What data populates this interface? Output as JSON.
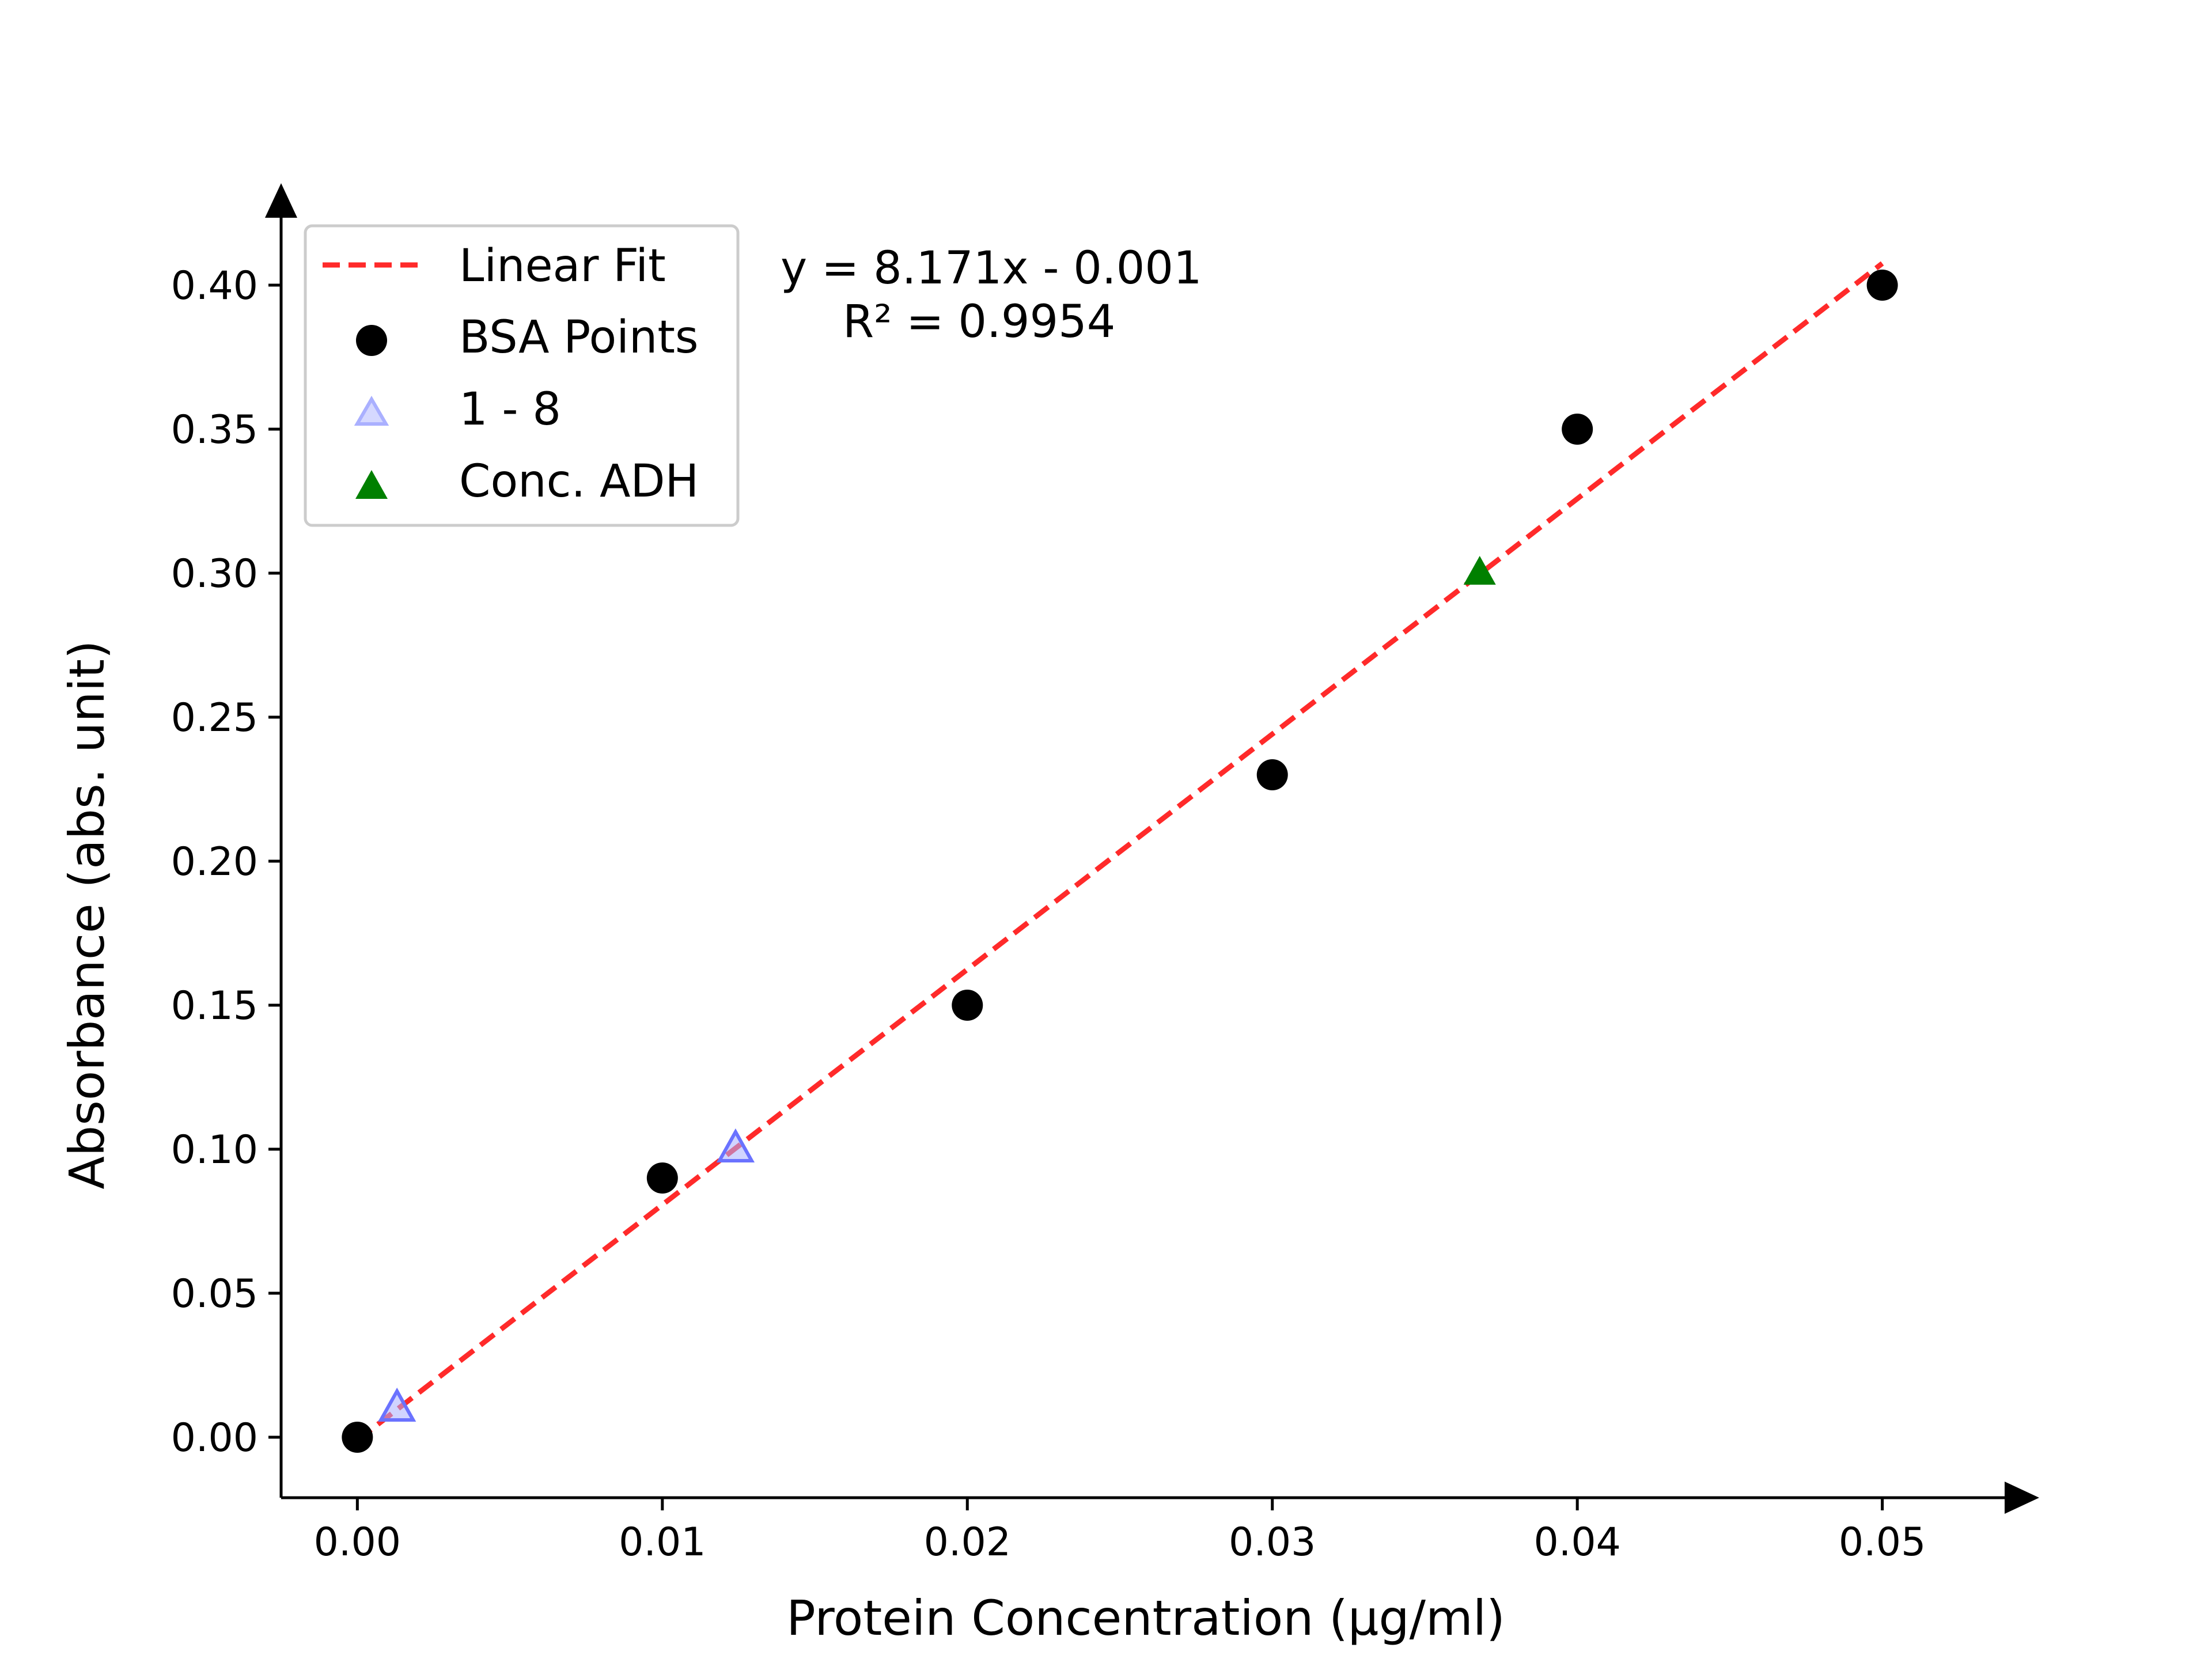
{
  "chart_data": {
    "type": "scatter",
    "xlabel": "Protein Concentration (µg/ml)",
    "ylabel": "Absorbance (abs. unit)",
    "xlim": [
      -0.0025,
      0.0525
    ],
    "ylim": [
      -0.021,
      0.421
    ],
    "x_ticks": [
      "0.00",
      "0.01",
      "0.02",
      "0.03",
      "0.04",
      "0.05"
    ],
    "y_ticks": [
      "0.00",
      "0.05",
      "0.10",
      "0.15",
      "0.20",
      "0.25",
      "0.30",
      "0.35",
      "0.40"
    ],
    "x_tick_values": [
      0.0,
      0.01,
      0.02,
      0.03,
      0.04,
      0.05
    ],
    "y_tick_values": [
      0.0,
      0.05,
      0.1,
      0.15,
      0.2,
      0.25,
      0.3,
      0.35,
      0.4
    ],
    "legend_position": "top-left",
    "grid": false,
    "fit_equation": "y = 8.171x - 0.001",
    "fit_r2": "R² = 0.9954",
    "series": [
      {
        "name": "Linear Fit",
        "kind": "line",
        "style": "dashed",
        "color": "#ff2a2a",
        "x": [
          0.0,
          0.05
        ],
        "y": [
          -0.001,
          0.40755
        ]
      },
      {
        "name": "BSA Points",
        "kind": "scatter",
        "marker": "circle",
        "color": "#000000",
        "x": [
          0.0,
          0.01,
          0.02,
          0.03,
          0.04,
          0.05
        ],
        "y": [
          0.0,
          0.09,
          0.15,
          0.23,
          0.35,
          0.4
        ]
      },
      {
        "name": "1 - 8",
        "kind": "scatter",
        "marker": "triangle",
        "color": "#aab0ff",
        "edge": "#6a72ff",
        "x": [
          0.0013,
          0.0124
        ],
        "y": [
          0.01,
          0.1
        ]
      },
      {
        "name": "Conc. ADH",
        "kind": "scatter",
        "marker": "triangle",
        "color": "#008000",
        "x": [
          0.0368
        ],
        "y": [
          0.3
        ]
      }
    ]
  }
}
